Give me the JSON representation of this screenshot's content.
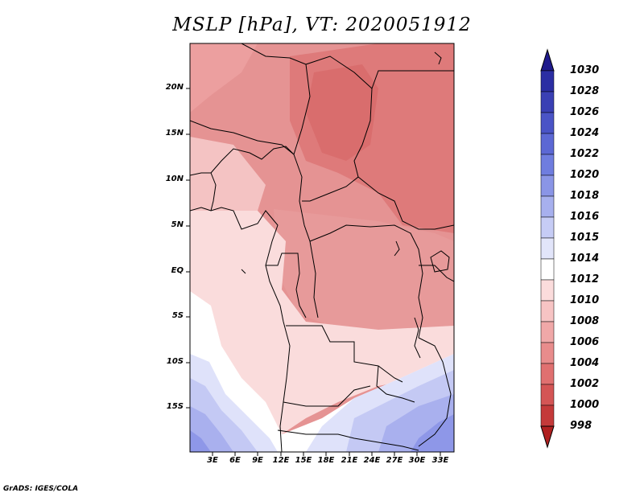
{
  "title": "MSLP [hPa], VT: 2020051912",
  "lat_labels": [
    "20N",
    "15N",
    "10N",
    "5N",
    "EQ",
    "5S",
    "10S",
    "15S"
  ],
  "lon_labels": [
    "3E",
    "6E",
    "9E",
    "12E",
    "15E",
    "18E",
    "21E",
    "24E",
    "27E",
    "30E",
    "33E"
  ],
  "colorbar": {
    "labels": [
      "1030",
      "1028",
      "1026",
      "1024",
      "1022",
      "1020",
      "1018",
      "1016",
      "1015",
      "1014",
      "1012",
      "1010",
      "1008",
      "1006",
      "1004",
      "1002",
      "1000",
      "998"
    ],
    "colors": [
      "#1f1a8c",
      "#2b2ea3",
      "#3a40b4",
      "#4a54c6",
      "#5c68d4",
      "#6f7ddf",
      "#8a95e6",
      "#a7b0ee",
      "#c6ccf5",
      "#e2e5fa",
      "#ffffff",
      "#fbdcdc",
      "#f7c4c4",
      "#f0a8a8",
      "#e88c8c",
      "#e07070",
      "#d45555",
      "#c43a3a",
      "#b02020"
    ]
  },
  "footer": "GrADS: IGES/COLA"
}
